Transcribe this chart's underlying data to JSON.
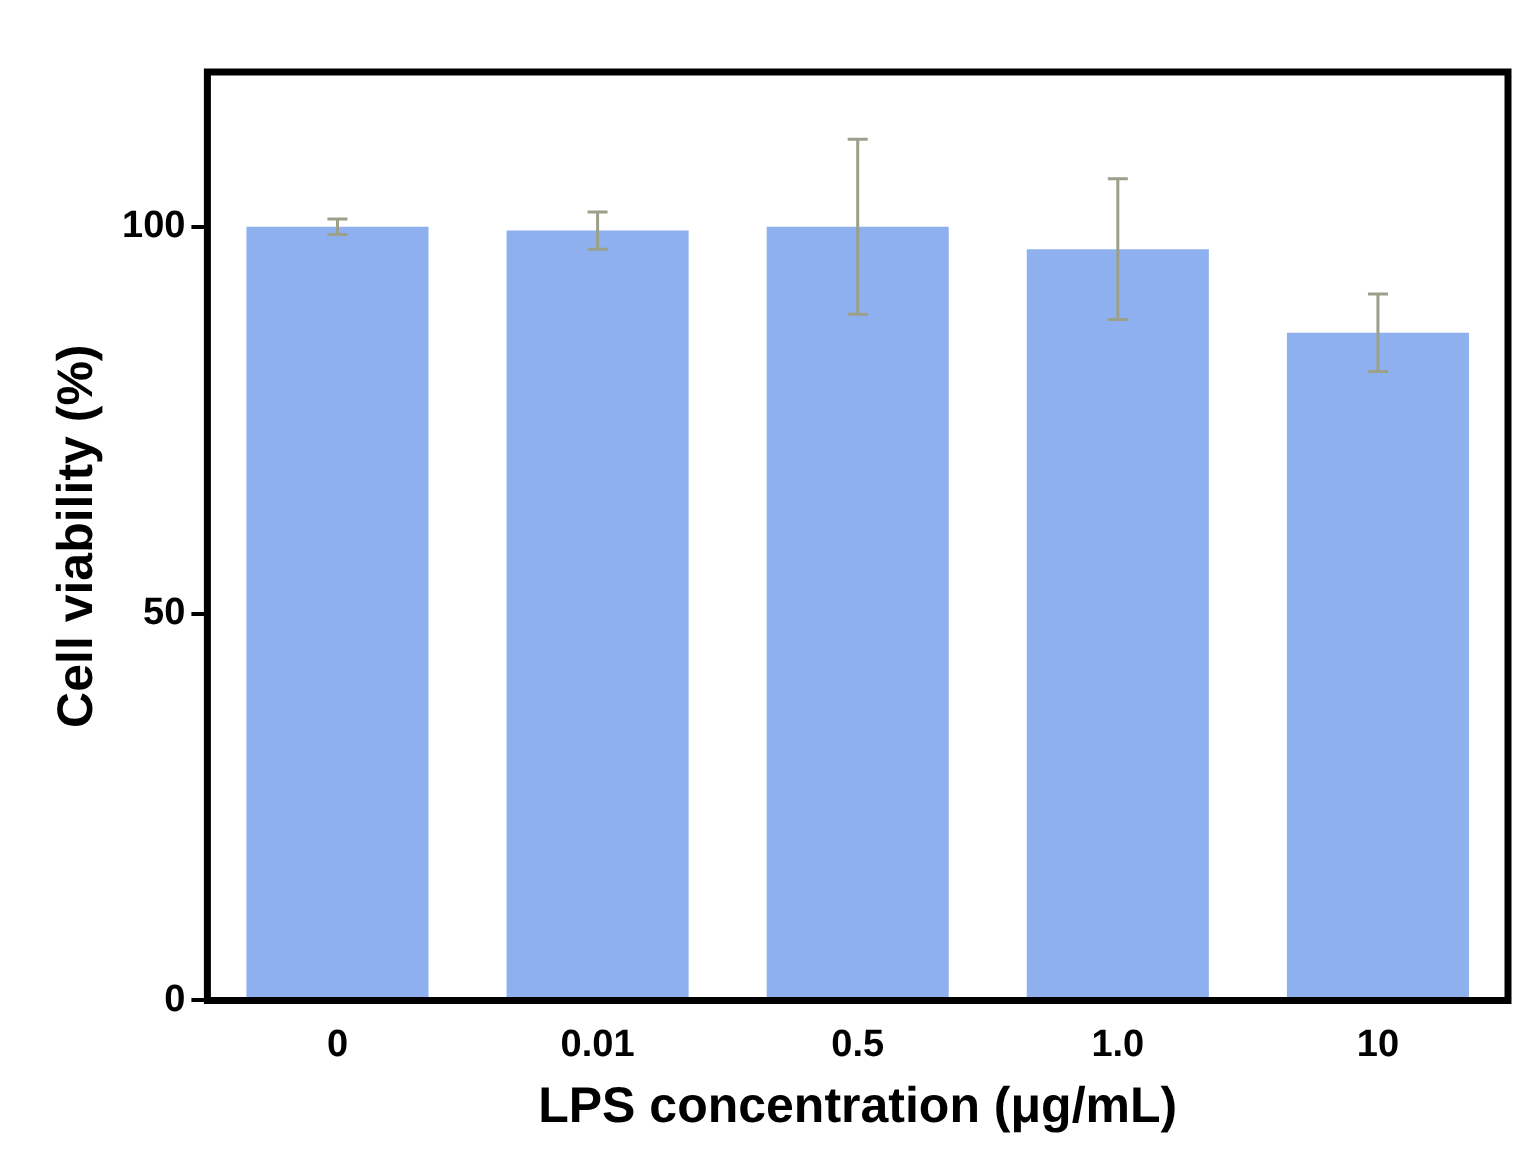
{
  "chart_data": {
    "type": "bar",
    "xlabel": "LPS concentration (μg/mL)",
    "ylabel": "Cell viability (%)",
    "categories": [
      "0",
      "0.01",
      "0.5",
      "1.0",
      "10"
    ],
    "values": [
      100,
      99.5,
      100,
      97.1,
      86.3
    ],
    "errors": [
      1,
      2.4,
      11.3,
      9.1,
      5
    ],
    "color": "#8fb0ef",
    "ylim": [
      0,
      120
    ],
    "yticks": [
      0,
      50,
      100
    ],
    "grid": false,
    "legend": false
  }
}
